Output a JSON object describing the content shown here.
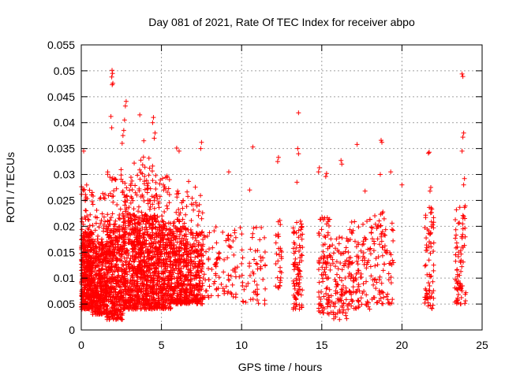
{
  "chart_data": {
    "type": "scatter",
    "title": "Day 081 of 2021, Rate Of TEC Index for receiver abpo",
    "xlabel": "GPS time / hours",
    "ylabel": "ROTI / TECUs",
    "xlim": [
      0,
      25
    ],
    "ylim": [
      0,
      0.055
    ],
    "xticks": [
      0,
      5,
      10,
      15,
      20,
      25
    ],
    "xtick_labels": [
      "0",
      "5",
      "10",
      "15",
      "20",
      "25"
    ],
    "yticks": [
      0,
      0.005,
      0.01,
      0.015,
      0.02,
      0.025,
      0.03,
      0.035,
      0.04,
      0.045,
      0.05,
      0.055
    ],
    "ytick_labels": [
      "0",
      "0.005",
      "0.01",
      "0.015",
      "0.02",
      "0.025",
      "0.03",
      "0.035",
      "0.04",
      "0.045",
      "0.05",
      "0.055"
    ],
    "grid": true,
    "marker": "+",
    "marker_color": "#ff0000",
    "series": [
      {
        "name": "ROTI",
        "points": [
          [
            1.92,
            0.0501
          ],
          [
            1.95,
            0.0495
          ],
          [
            1.9,
            0.0488
          ],
          [
            1.97,
            0.0476
          ],
          [
            1.93,
            0.0473
          ],
          [
            23.75,
            0.0494
          ],
          [
            23.8,
            0.0489
          ],
          [
            13.55,
            0.0419
          ],
          [
            2.8,
            0.0441
          ],
          [
            2.75,
            0.0432
          ],
          [
            3.65,
            0.0415
          ],
          [
            4.5,
            0.041
          ],
          [
            4.45,
            0.04
          ],
          [
            2.7,
            0.0405
          ],
          [
            1.85,
            0.0412
          ],
          [
            1.9,
            0.039
          ],
          [
            2.65,
            0.0385
          ],
          [
            2.6,
            0.0375
          ],
          [
            2.55,
            0.036
          ],
          [
            3.9,
            0.0365
          ],
          [
            4.6,
            0.038
          ],
          [
            4.55,
            0.037
          ],
          [
            23.85,
            0.038
          ],
          [
            23.8,
            0.0372
          ],
          [
            23.75,
            0.0345
          ],
          [
            18.7,
            0.0366
          ],
          [
            18.75,
            0.0362
          ],
          [
            17.2,
            0.0358
          ],
          [
            10.7,
            0.0353
          ],
          [
            13.5,
            0.035
          ],
          [
            13.55,
            0.034
          ],
          [
            21.7,
            0.0343
          ],
          [
            21.65,
            0.0341
          ],
          [
            5.95,
            0.0351
          ],
          [
            6.1,
            0.0345
          ],
          [
            7.5,
            0.0362
          ],
          [
            7.45,
            0.035
          ],
          [
            3.3,
            0.0322
          ],
          [
            12.3,
            0.0333
          ],
          [
            12.25,
            0.0325
          ],
          [
            16.2,
            0.0327
          ],
          [
            16.25,
            0.032
          ],
          [
            0.15,
            0.0345
          ],
          [
            19.3,
            0.0305
          ],
          [
            14.85,
            0.0313
          ],
          [
            14.8,
            0.0305
          ],
          [
            9.2,
            0.0305
          ],
          [
            20.0,
            0.028
          ],
          [
            23.9,
            0.0292
          ],
          [
            23.85,
            0.028
          ],
          [
            21.8,
            0.0275
          ],
          [
            21.75,
            0.0268
          ],
          [
            17.7,
            0.0268
          ],
          [
            18.65,
            0.03
          ],
          [
            15.3,
            0.0302
          ],
          [
            15.25,
            0.0296
          ],
          [
            13.45,
            0.0285
          ],
          [
            10.5,
            0.027
          ]
        ]
      }
    ],
    "clusters": [
      {
        "x": [
          0.0,
          0.7
        ],
        "y": [
          0.004,
          0.019
        ],
        "n": 380
      },
      {
        "x": [
          0.0,
          0.7
        ],
        "y": [
          0.019,
          0.028
        ],
        "n": 30
      },
      {
        "x": [
          0.7,
          1.6
        ],
        "y": [
          0.003,
          0.017
        ],
        "n": 380
      },
      {
        "x": [
          0.7,
          1.6
        ],
        "y": [
          0.017,
          0.027
        ],
        "n": 30
      },
      {
        "x": [
          1.6,
          2.6
        ],
        "y": [
          0.002,
          0.02
        ],
        "n": 380
      },
      {
        "x": [
          1.6,
          2.6
        ],
        "y": [
          0.02,
          0.031
        ],
        "n": 40
      },
      {
        "x": [
          2.6,
          3.6
        ],
        "y": [
          0.004,
          0.022
        ],
        "n": 380
      },
      {
        "x": [
          2.6,
          3.6
        ],
        "y": [
          0.022,
          0.03
        ],
        "n": 40
      },
      {
        "x": [
          3.6,
          4.6
        ],
        "y": [
          0.004,
          0.022
        ],
        "n": 380
      },
      {
        "x": [
          3.6,
          4.6
        ],
        "y": [
          0.022,
          0.034
        ],
        "n": 50
      },
      {
        "x": [
          4.6,
          5.6
        ],
        "y": [
          0.004,
          0.021
        ],
        "n": 340
      },
      {
        "x": [
          4.6,
          5.6
        ],
        "y": [
          0.021,
          0.03
        ],
        "n": 35
      },
      {
        "x": [
          5.6,
          6.6
        ],
        "y": [
          0.005,
          0.02
        ],
        "n": 300
      },
      {
        "x": [
          5.6,
          6.6
        ],
        "y": [
          0.02,
          0.027
        ],
        "n": 25
      },
      {
        "x": [
          6.6,
          7.6
        ],
        "y": [
          0.005,
          0.019
        ],
        "n": 220
      },
      {
        "x": [
          6.6,
          7.6
        ],
        "y": [
          0.019,
          0.03
        ],
        "n": 20
      },
      {
        "x": [
          7.6,
          9.5
        ],
        "y": [
          0.006,
          0.02
        ],
        "n": 80
      },
      {
        "x": [
          9.5,
          11.5
        ],
        "y": [
          0.005,
          0.02
        ],
        "n": 70
      },
      {
        "x": [
          12.1,
          12.5
        ],
        "y": [
          0.008,
          0.022
        ],
        "n": 30
      },
      {
        "x": [
          13.2,
          13.8
        ],
        "y": [
          0.004,
          0.021
        ],
        "n": 90
      },
      {
        "x": [
          14.8,
          15.5
        ],
        "y": [
          0.003,
          0.022
        ],
        "n": 90
      },
      {
        "x": [
          15.5,
          16.6
        ],
        "y": [
          0.002,
          0.018
        ],
        "n": 90
      },
      {
        "x": [
          16.6,
          18.0
        ],
        "y": [
          0.004,
          0.021
        ],
        "n": 110
      },
      {
        "x": [
          18.0,
          19.5
        ],
        "y": [
          0.005,
          0.023
        ],
        "n": 100
      },
      {
        "x": [
          21.4,
          22.0
        ],
        "y": [
          0.004,
          0.024
        ],
        "n": 70
      },
      {
        "x": [
          23.3,
          24.0
        ],
        "y": [
          0.005,
          0.024
        ],
        "n": 80
      }
    ]
  }
}
